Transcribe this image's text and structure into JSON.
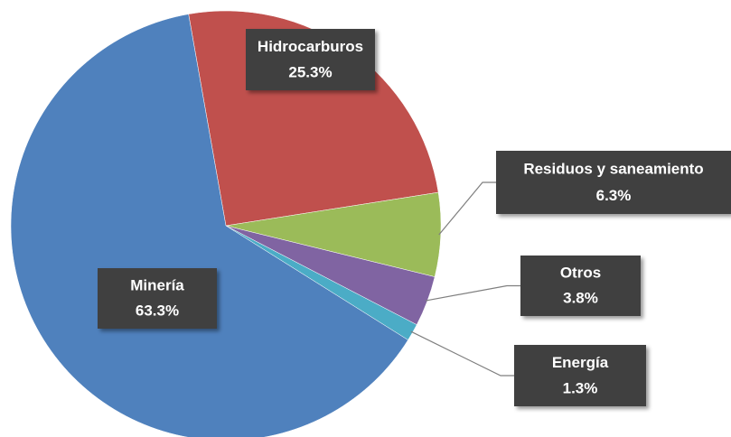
{
  "chart_data": {
    "type": "pie",
    "categories": [
      "Hidrocarburos",
      "Residuos y saneamiento",
      "Otros",
      "Energía",
      "Minería"
    ],
    "values": [
      25.3,
      6.3,
      3.8,
      1.3,
      63.3
    ],
    "value_labels": [
      "25.3%",
      "6.3%",
      "3.8%",
      "1.3%",
      "63.3%"
    ],
    "colors": [
      "#c0504d",
      "#9bbb59",
      "#8064a2",
      "#4bacc6",
      "#4f81bd"
    ]
  }
}
